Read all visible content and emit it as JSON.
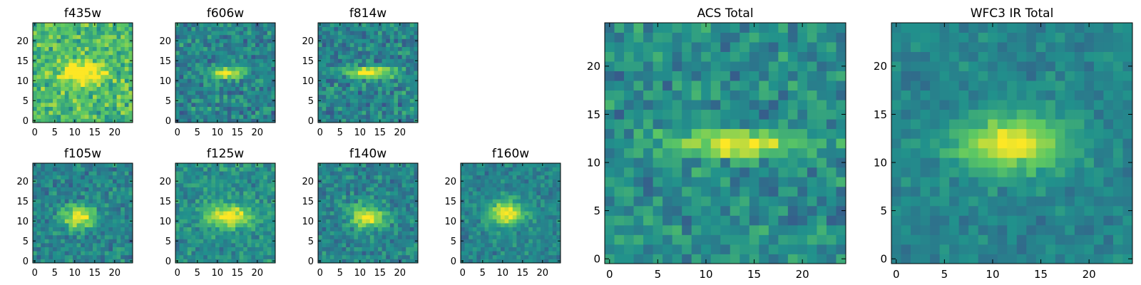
{
  "figure": {
    "colormap": "viridis",
    "colormap_stops": [
      "#440154",
      "#3b528b",
      "#21918c",
      "#5ec962",
      "#fde725"
    ],
    "axis_color": "#000000"
  },
  "chart_data": [
    {
      "type": "heatmap",
      "title": "f435w",
      "xlim": [
        0,
        24
      ],
      "ylim": [
        0,
        24
      ],
      "xticks": [
        0,
        5,
        10,
        15,
        20
      ],
      "yticks": [
        0,
        5,
        10,
        15,
        20
      ],
      "source_center": [
        12,
        12
      ],
      "source_extent": [
        4,
        2
      ],
      "peak": 0.45,
      "background": 0.68,
      "noise": 0.25
    },
    {
      "type": "heatmap",
      "title": "f606w",
      "xlim": [
        0,
        24
      ],
      "ylim": [
        0,
        24
      ],
      "xticks": [
        0,
        5,
        10,
        15,
        20
      ],
      "yticks": [
        0,
        5,
        10,
        15,
        20
      ],
      "source_center": [
        12,
        12
      ],
      "source_extent": [
        3,
        1
      ],
      "peak": 0.55,
      "background": 0.45,
      "noise": 0.22
    },
    {
      "type": "heatmap",
      "title": "f814w",
      "xlim": [
        0,
        24
      ],
      "ylim": [
        0,
        24
      ],
      "xticks": [
        0,
        5,
        10,
        15,
        20
      ],
      "yticks": [
        0,
        5,
        10,
        15,
        20
      ],
      "source_center": [
        13,
        12
      ],
      "source_extent": [
        4,
        1
      ],
      "peak": 0.6,
      "background": 0.45,
      "noise": 0.22
    },
    {
      "type": "heatmap",
      "title": "f105w",
      "xlim": [
        0,
        24
      ],
      "ylim": [
        0,
        24
      ],
      "xticks": [
        0,
        5,
        10,
        15,
        20
      ],
      "yticks": [
        0,
        5,
        10,
        15,
        20
      ],
      "source_center": [
        11,
        11
      ],
      "source_extent": [
        3,
        2
      ],
      "peak": 0.55,
      "background": 0.45,
      "noise": 0.18
    },
    {
      "type": "heatmap",
      "title": "f125w",
      "xlim": [
        0,
        24
      ],
      "ylim": [
        0,
        24
      ],
      "xticks": [
        0,
        5,
        10,
        15,
        20
      ],
      "yticks": [
        0,
        5,
        10,
        15,
        20
      ],
      "source_center": [
        13,
        11
      ],
      "source_extent": [
        4,
        2
      ],
      "peak": 0.5,
      "background": 0.5,
      "noise": 0.18
    },
    {
      "type": "heatmap",
      "title": "f140w",
      "xlim": [
        0,
        24
      ],
      "ylim": [
        0,
        24
      ],
      "xticks": [
        0,
        5,
        10,
        15,
        20
      ],
      "yticks": [
        0,
        5,
        10,
        15,
        20
      ],
      "source_center": [
        12,
        11
      ],
      "source_extent": [
        3,
        2
      ],
      "peak": 0.55,
      "background": 0.45,
      "noise": 0.18
    },
    {
      "type": "heatmap",
      "title": "f160w",
      "xlim": [
        0,
        24
      ],
      "ylim": [
        0,
        24
      ],
      "xticks": [
        0,
        5,
        10,
        15,
        20
      ],
      "yticks": [
        0,
        5,
        10,
        15,
        20
      ],
      "source_center": [
        11,
        12
      ],
      "source_extent": [
        3,
        2
      ],
      "peak": 0.6,
      "background": 0.45,
      "noise": 0.15
    },
    {
      "type": "heatmap",
      "title": "ACS Total",
      "xlim": [
        0,
        24
      ],
      "ylim": [
        0,
        24
      ],
      "xticks": [
        0,
        5,
        10,
        15,
        20
      ],
      "yticks": [
        0,
        5,
        10,
        15,
        20
      ],
      "source_center": [
        13,
        12
      ],
      "source_extent": [
        5,
        1
      ],
      "peak": 0.5,
      "background": 0.48,
      "noise": 0.2
    },
    {
      "type": "heatmap",
      "title": "WFC3 IR Total",
      "xlim": [
        0,
        24
      ],
      "ylim": [
        0,
        24
      ],
      "xticks": [
        0,
        5,
        10,
        15,
        20
      ],
      "yticks": [
        0,
        5,
        10,
        15,
        20
      ],
      "source_center": [
        12,
        12
      ],
      "source_extent": [
        4,
        2
      ],
      "peak": 0.55,
      "background": 0.45,
      "noise": 0.12
    }
  ]
}
